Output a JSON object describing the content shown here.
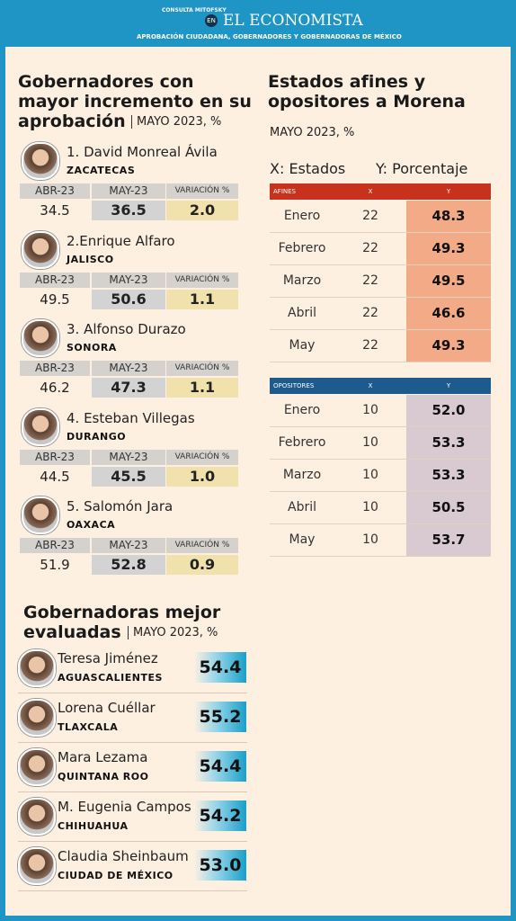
{
  "header": {
    "logo": "CONSULTA MITOFSKY",
    "en": "EN",
    "brand": "EL ECONOMISTA",
    "subtitle": "APROBACIÓN CIUDADANA, GOBERNADORES Y GOBERNADORAS DE MÉXICO"
  },
  "governors": {
    "title": "Gobernadores con mayor incremento en su aprobación",
    "note": "MAYO 2023, %",
    "columns": [
      "ABR-23",
      "MAY-23",
      "VARIACIÓN %"
    ],
    "items": [
      {
        "name": "1. David Monreal Ávila",
        "state": "ZACATECAS",
        "values": [
          "34.5",
          "36.5",
          "2.0"
        ]
      },
      {
        "name": "2.Enrique Alfaro",
        "state": "JALISCO",
        "values": [
          "49.5",
          "50.6",
          "1.1"
        ]
      },
      {
        "name": "3. Alfonso Durazo",
        "state": "SONORA",
        "values": [
          "46.2",
          "47.3",
          "1.1"
        ]
      },
      {
        "name": "4. Esteban Villegas",
        "state": "DURANGO",
        "values": [
          "44.5",
          "45.5",
          "1.0"
        ]
      },
      {
        "name": "5. Salomón Jara",
        "state": "OAXACA",
        "values": [
          "51.9",
          "52.8",
          "0.9"
        ]
      }
    ]
  },
  "states": {
    "title": "Estados afines y opositores a Morena",
    "note": "MAYO 2023, %",
    "x_label": "X: Estados",
    "y_label": "Y: Porcentaje",
    "tables": [
      {
        "header": [
          "AFINES",
          "X",
          "Y"
        ],
        "rows": [
          [
            "Enero",
            "22",
            "48.3"
          ],
          [
            "Febrero",
            "22",
            "49.3"
          ],
          [
            "Marzo",
            "22",
            "49.5"
          ],
          [
            "Abril",
            "22",
            "46.6"
          ],
          [
            "May",
            "22",
            "49.3"
          ]
        ]
      },
      {
        "header": [
          "OPOSITORES",
          "X",
          "Y"
        ],
        "rows": [
          [
            "Enero",
            "10",
            "52.0"
          ],
          [
            "Febrero",
            "10",
            "53.3"
          ],
          [
            "Marzo",
            "10",
            "53.3"
          ],
          [
            "Abril",
            "10",
            "50.5"
          ],
          [
            "May",
            "10",
            "53.7"
          ]
        ]
      }
    ]
  },
  "governesses": {
    "title": "Gobernadoras mejor evaluadas",
    "note": "MAYO 2023, %",
    "items": [
      {
        "name": "Teresa Jiménez",
        "state": "AGUASCALIENTES",
        "value": "54.4"
      },
      {
        "name": "Lorena Cuéllar",
        "state": "TLAXCALA",
        "value": "55.2"
      },
      {
        "name": "Mara Lezama",
        "state": "QUINTANA ROO",
        "value": "54.4"
      },
      {
        "name": "M. Eugenia Campos",
        "state": "CHIHUAHUA",
        "value": "54.2"
      },
      {
        "name": "Claudia Sheinbaum",
        "state": "CIUDAD DE MÉXICO",
        "value": "53.0"
      }
    ]
  }
}
